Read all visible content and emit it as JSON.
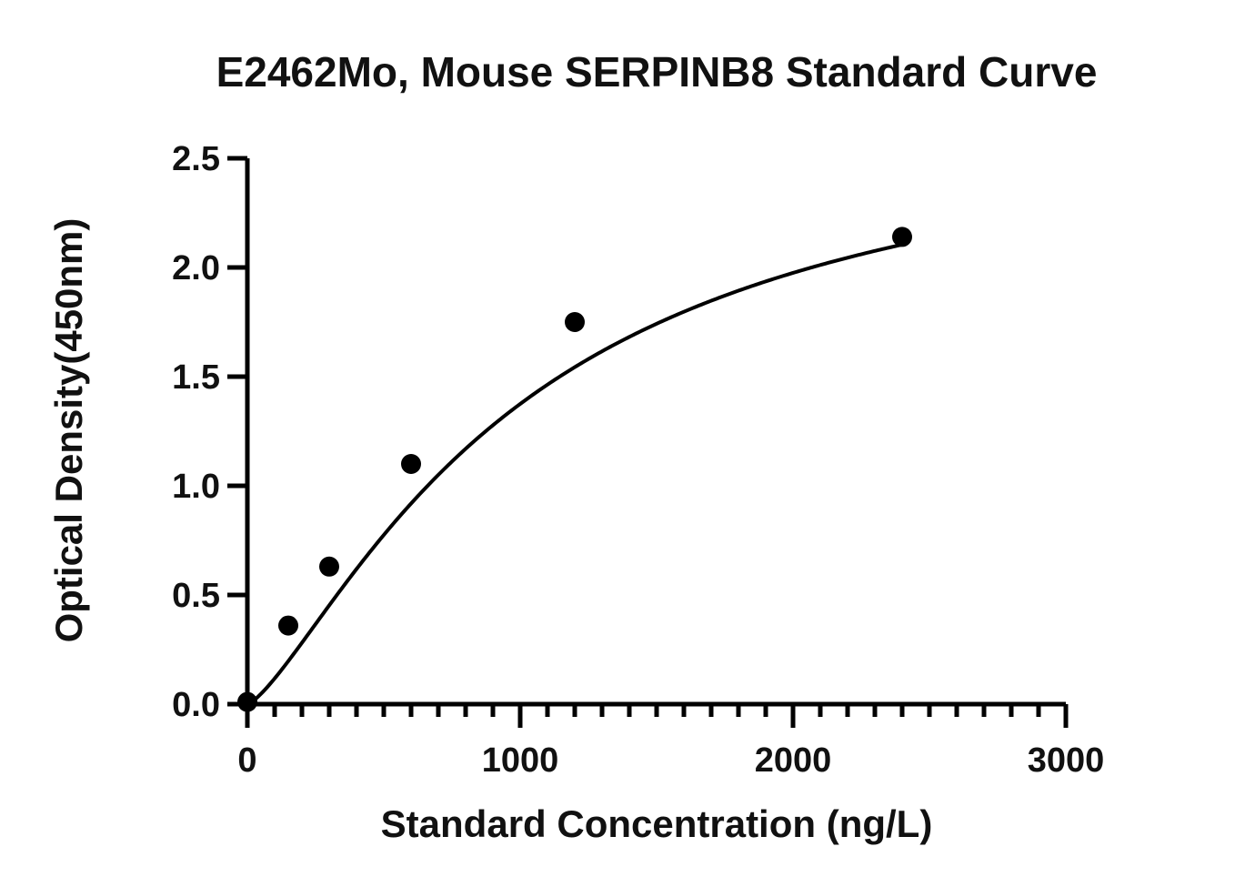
{
  "chart_data": {
    "type": "scatter",
    "title": "E2462Mo, Mouse SERPINB8 Standard Curve",
    "xlabel": "Standard Concentration (ng/L)",
    "ylabel": "Optical Density(450nm)",
    "xlim": [
      0,
      3000
    ],
    "ylim": [
      0,
      2.5
    ],
    "x_ticks": [
      0,
      1000,
      2000,
      3000
    ],
    "x_tick_labels": [
      "0",
      "1000",
      "2000",
      "3000"
    ],
    "x_minor_step": 100,
    "y_ticks": [
      0,
      0.5,
      1.0,
      1.5,
      2.0,
      2.5
    ],
    "y_tick_labels": [
      "0.0",
      "0.5",
      "1.0",
      "1.5",
      "2.0",
      "2.5"
    ],
    "grid": false,
    "legend": "none",
    "series": [
      {
        "x": [
          0,
          150,
          300,
          600,
          1200,
          2400
        ],
        "y": [
          0.01,
          0.36,
          0.63,
          1.1,
          1.75,
          2.14
        ]
      }
    ],
    "fit_curve": "four-parameter logistic"
  }
}
